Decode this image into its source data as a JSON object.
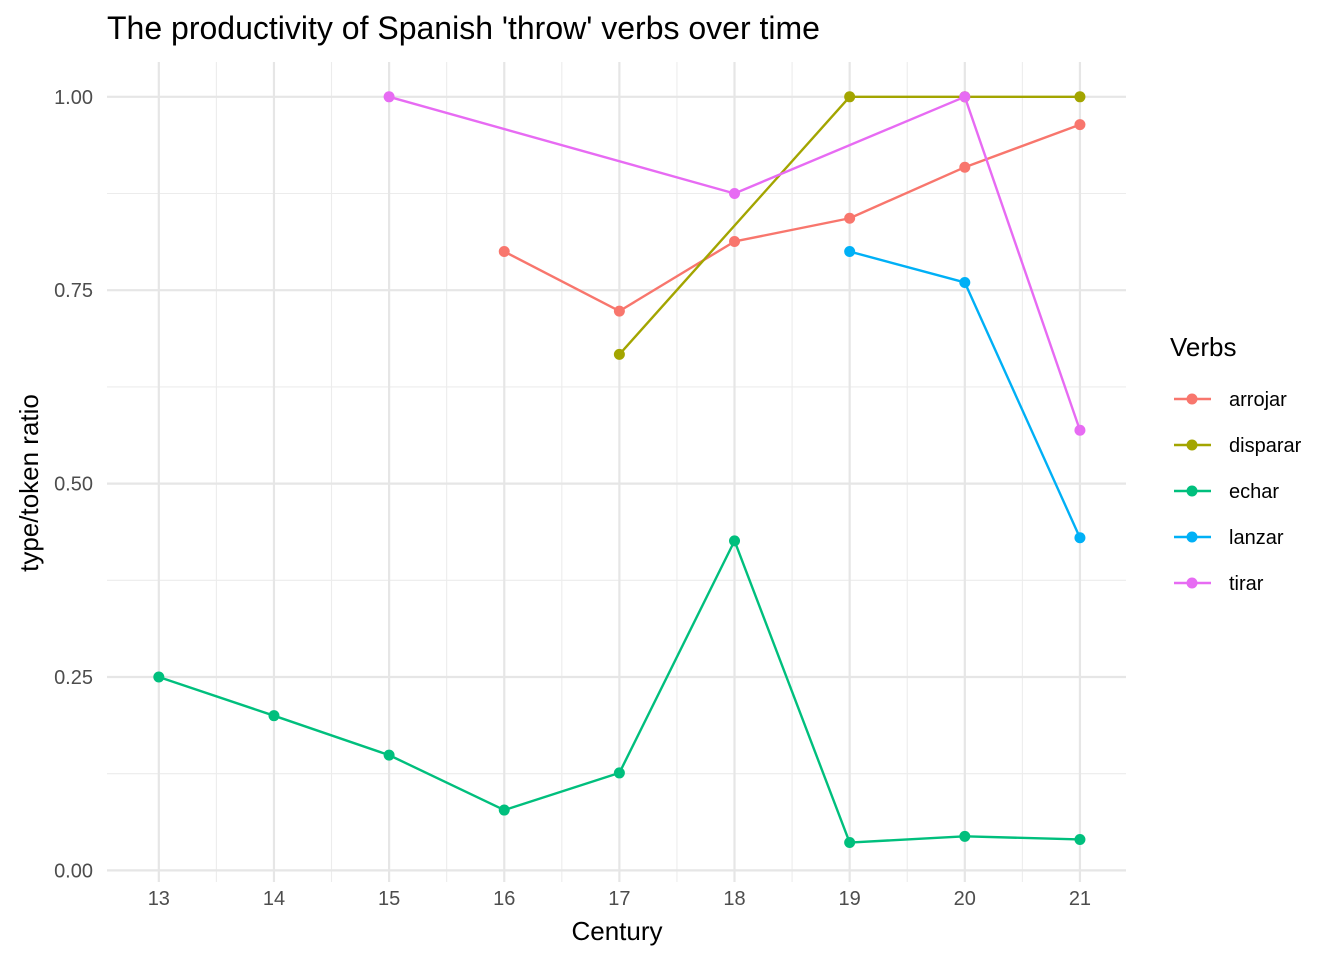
{
  "chart_data": {
    "type": "line",
    "title": "The productivity of Spanish 'throw' verbs over time",
    "xlabel": "Century",
    "ylabel": "type/token ratio",
    "x": [
      13,
      14,
      15,
      16,
      17,
      18,
      19,
      20,
      21
    ],
    "xlim": [
      12.55,
      21.4
    ],
    "ylim": [
      -0.015,
      1.045
    ],
    "yticks": [
      0.0,
      0.25,
      0.5,
      0.75,
      1.0
    ],
    "ytick_labels": [
      "0.00",
      "0.25",
      "0.50",
      "0.75",
      "1.00"
    ],
    "grid": true,
    "legend_title": "Verbs",
    "legend_position": "right",
    "series": [
      {
        "name": "arrojar",
        "color": "#F8766D",
        "x": [
          16,
          17,
          18,
          19,
          20,
          21
        ],
        "values": [
          0.8,
          0.723,
          0.813,
          0.843,
          0.909,
          0.964
        ]
      },
      {
        "name": "disparar",
        "color": "#A3A500",
        "x": [
          17,
          19,
          20,
          21
        ],
        "values": [
          0.667,
          1.0,
          1.0,
          1.0
        ]
      },
      {
        "name": "echar",
        "color": "#00BF7D",
        "x": [
          13,
          14,
          15,
          16,
          17,
          18,
          19,
          20,
          21
        ],
        "values": [
          0.25,
          0.2,
          0.149,
          0.078,
          0.126,
          0.426,
          0.036,
          0.044,
          0.04
        ]
      },
      {
        "name": "lanzar",
        "color": "#00B0F6",
        "x": [
          19,
          20,
          21
        ],
        "values": [
          0.8,
          0.76,
          0.43
        ]
      },
      {
        "name": "tirar",
        "color": "#E76BF3",
        "x": [
          15,
          18,
          20,
          21
        ],
        "values": [
          1.0,
          0.875,
          1.0,
          0.569
        ]
      }
    ]
  }
}
